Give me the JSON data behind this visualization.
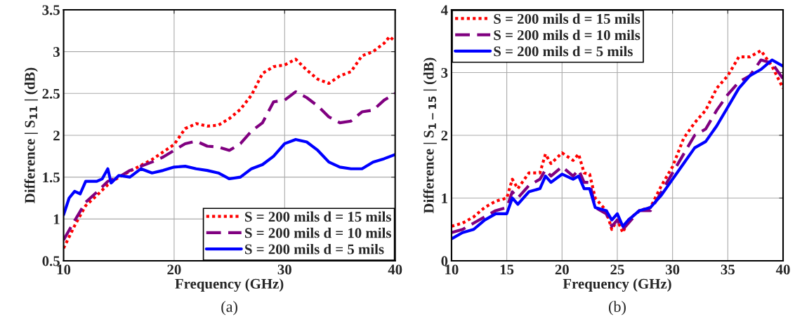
{
  "chart_data": [
    {
      "type": "line",
      "xlabel": "Frequency (GHz)",
      "ylabel": "Difference | S$_{11}$ | (dB)",
      "xlim": [
        10,
        40
      ],
      "ylim": [
        0.5,
        3.5
      ],
      "xticks": [
        10,
        20,
        30,
        40
      ],
      "yticks": [
        0.5,
        1,
        1.5,
        2,
        2.5,
        3,
        3.5
      ],
      "grid": true,
      "legend": "bottom right",
      "annotations": [
        "(a)"
      ],
      "series": [
        {
          "name": "S = 200 mils d = 15 mils",
          "color": "#ff0000",
          "line_style": "dotted",
          "x": [
            10,
            11,
            12,
            13,
            14,
            15,
            16,
            17,
            18,
            19,
            20,
            21,
            22,
            23,
            24,
            25,
            26,
            27,
            28,
            29,
            30,
            31,
            32,
            33,
            34,
            35,
            36,
            37,
            38,
            39,
            39.5,
            40
          ],
          "values": [
            0.65,
            0.92,
            1.16,
            1.28,
            1.41,
            1.5,
            1.57,
            1.64,
            1.71,
            1.8,
            1.89,
            2.08,
            2.14,
            2.11,
            2.12,
            2.2,
            2.31,
            2.48,
            2.74,
            2.82,
            2.84,
            2.91,
            2.78,
            2.67,
            2.62,
            2.71,
            2.76,
            2.95,
            3.0,
            3.1,
            3.18,
            3.12
          ]
        },
        {
          "name": "S = 200 mils d = 10 mils",
          "color": "#800080",
          "line_style": "dashed",
          "x": [
            10,
            11,
            12,
            13,
            14,
            15,
            16,
            17,
            18,
            19,
            20,
            21,
            22,
            23,
            24,
            25,
            26,
            27,
            28,
            29,
            30,
            31,
            32,
            33,
            34,
            35,
            36,
            37,
            38,
            39,
            40
          ],
          "values": [
            0.75,
            0.98,
            1.2,
            1.32,
            1.45,
            1.5,
            1.58,
            1.63,
            1.68,
            1.74,
            1.82,
            1.9,
            1.93,
            1.87,
            1.86,
            1.82,
            1.9,
            2.05,
            2.15,
            2.4,
            2.42,
            2.52,
            2.45,
            2.35,
            2.22,
            2.15,
            2.17,
            2.28,
            2.3,
            2.42,
            2.5
          ]
        },
        {
          "name": "S = 200 mils d = 5 mils",
          "color": "#0000ff",
          "line_style": "solid",
          "x": [
            10,
            10.5,
            11,
            11.5,
            12,
            13,
            13.5,
            14,
            14.3,
            15,
            16,
            17,
            18,
            19,
            20,
            21,
            22,
            23,
            24,
            25,
            26,
            27,
            28,
            29,
            30,
            31,
            32,
            33,
            34,
            35,
            36,
            37,
            38,
            39,
            40
          ],
          "values": [
            1.05,
            1.25,
            1.33,
            1.3,
            1.45,
            1.45,
            1.48,
            1.6,
            1.43,
            1.52,
            1.5,
            1.6,
            1.55,
            1.58,
            1.62,
            1.63,
            1.6,
            1.58,
            1.55,
            1.48,
            1.5,
            1.6,
            1.65,
            1.75,
            1.9,
            1.95,
            1.92,
            1.82,
            1.68,
            1.62,
            1.6,
            1.6,
            1.68,
            1.72,
            1.77
          ]
        }
      ]
    },
    {
      "type": "line",
      "xlabel": "Frequency (GHz)",
      "ylabel": "Difference | S$_{1−15}$ | (dB)",
      "xlim": [
        10,
        40
      ],
      "ylim": [
        0,
        4
      ],
      "xticks": [
        10,
        15,
        20,
        25,
        30,
        35,
        40
      ],
      "yticks": [
        0,
        1,
        2,
        3,
        4
      ],
      "grid": true,
      "legend": "top left",
      "annotations": [
        "(b)"
      ],
      "series": [
        {
          "name": "S = 200 mils d = 15 mils",
          "color": "#ff0000",
          "line_style": "dotted",
          "x": [
            10,
            11,
            12,
            13,
            14,
            15,
            15.5,
            16,
            17,
            18,
            18.5,
            19,
            20,
            21,
            21.5,
            22,
            22.5,
            23,
            24,
            24.5,
            25,
            25.5,
            26,
            27,
            28,
            29,
            30,
            31,
            32,
            33,
            34,
            35,
            36,
            37,
            38,
            39,
            40
          ],
          "values": [
            0.55,
            0.6,
            0.7,
            0.85,
            0.95,
            1.0,
            1.3,
            1.15,
            1.4,
            1.4,
            1.7,
            1.55,
            1.72,
            1.6,
            1.7,
            1.4,
            1.38,
            1.0,
            0.8,
            0.5,
            0.65,
            0.45,
            0.65,
            0.8,
            0.85,
            1.2,
            1.5,
            1.95,
            2.2,
            2.4,
            2.75,
            2.95,
            3.25,
            3.25,
            3.35,
            3.1,
            2.75
          ]
        },
        {
          "name": "S = 200 mils d = 10 mils",
          "color": "#800080",
          "line_style": "dashed",
          "x": [
            10,
            11,
            12,
            13,
            14,
            15,
            15.5,
            16,
            17,
            18,
            18.5,
            19,
            20,
            21,
            21.5,
            22,
            22.5,
            23,
            24,
            24.5,
            25,
            25.5,
            26,
            27,
            28,
            29,
            30,
            31,
            32,
            33,
            34,
            35,
            36,
            37,
            38,
            39,
            40
          ],
          "values": [
            0.45,
            0.5,
            0.6,
            0.7,
            0.8,
            0.85,
            1.1,
            1.0,
            1.2,
            1.3,
            1.45,
            1.35,
            1.5,
            1.35,
            1.45,
            1.25,
            1.25,
            0.85,
            0.75,
            0.55,
            0.65,
            0.5,
            0.6,
            0.8,
            0.8,
            1.1,
            1.4,
            1.7,
            2.0,
            2.1,
            2.4,
            2.65,
            2.85,
            2.95,
            3.2,
            3.15,
            2.9
          ]
        },
        {
          "name": "S = 200 mils d = 5 mils",
          "color": "#0000ff",
          "line_style": "solid",
          "x": [
            10,
            11,
            12,
            13,
            14,
            15,
            15.5,
            16,
            17,
            18,
            18.5,
            19,
            20,
            21,
            21.5,
            22,
            22.5,
            23,
            24,
            24.5,
            25,
            25.5,
            26,
            27,
            28,
            29,
            30,
            31,
            32,
            33,
            34,
            35,
            36,
            37,
            38,
            39,
            40
          ],
          "values": [
            0.35,
            0.45,
            0.5,
            0.65,
            0.75,
            0.75,
            1.0,
            0.9,
            1.1,
            1.15,
            1.35,
            1.25,
            1.38,
            1.3,
            1.35,
            1.15,
            1.15,
            0.85,
            0.8,
            0.65,
            0.75,
            0.55,
            0.65,
            0.8,
            0.85,
            1.05,
            1.3,
            1.55,
            1.8,
            1.9,
            2.15,
            2.45,
            2.75,
            2.95,
            3.05,
            3.2,
            3.1
          ]
        }
      ]
    }
  ]
}
